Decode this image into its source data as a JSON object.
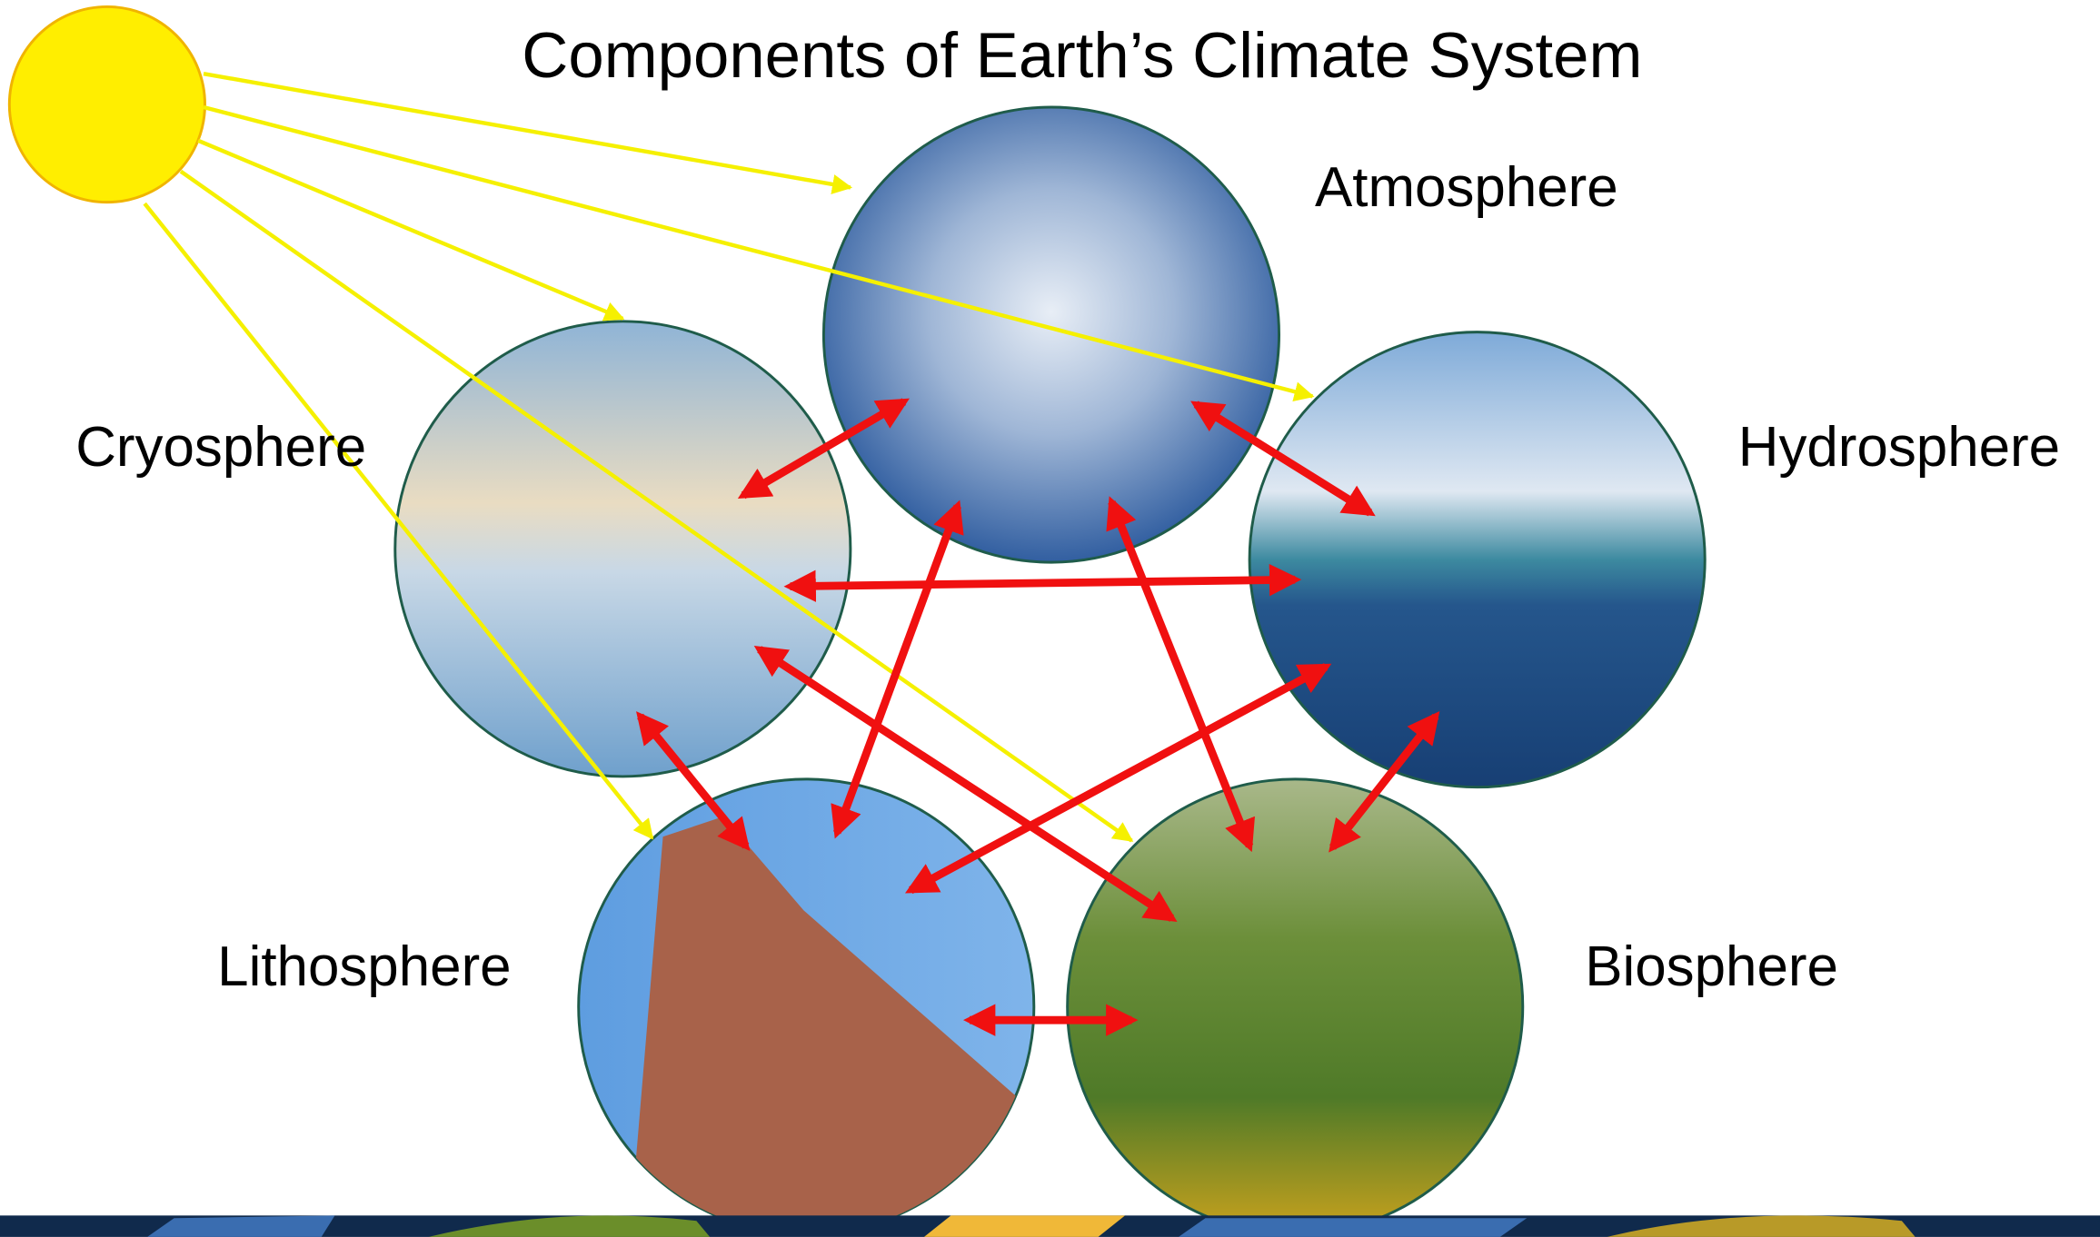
{
  "title": "Components of Earth’s Climate System",
  "nodes": [
    {
      "label": "Atmosphere"
    },
    {
      "label": "Cryosphere"
    },
    {
      "label": "Hydrosphere"
    },
    {
      "label": "Lithosphere"
    },
    {
      "label": "Biosphere"
    }
  ]
}
